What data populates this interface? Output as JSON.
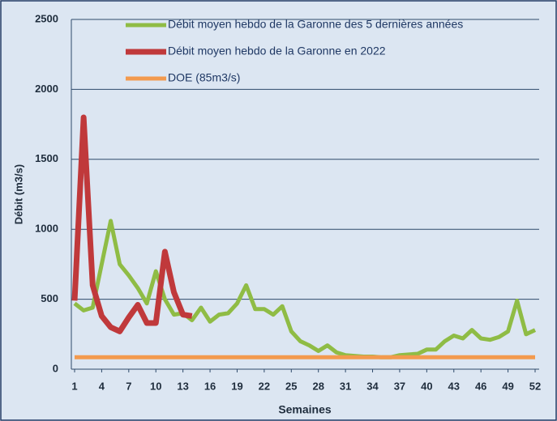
{
  "chart_data": {
    "type": "line",
    "ylabel": "Débit (m3/s)",
    "xlabel": "Semaines",
    "x": [
      1,
      2,
      3,
      4,
      5,
      6,
      7,
      8,
      9,
      10,
      11,
      12,
      13,
      14,
      15,
      16,
      17,
      18,
      19,
      20,
      21,
      22,
      23,
      24,
      25,
      26,
      27,
      28,
      29,
      30,
      31,
      32,
      33,
      34,
      35,
      36,
      37,
      38,
      39,
      40,
      41,
      42,
      43,
      44,
      45,
      46,
      47,
      48,
      49,
      50,
      51,
      52
    ],
    "xlim": [
      1,
      52
    ],
    "xticks": [
      1,
      4,
      7,
      10,
      13,
      16,
      19,
      22,
      25,
      28,
      31,
      34,
      37,
      40,
      43,
      46,
      49,
      52
    ],
    "ylim": [
      0,
      2500
    ],
    "yticks": [
      0,
      500,
      1000,
      1500,
      2000,
      2500
    ],
    "grid": true,
    "series": [
      {
        "name": "Débit moyen hebdo de la Garonne des 5 dernières années",
        "color": "#8fbc45",
        "values": [
          470,
          420,
          440,
          750,
          1060,
          750,
          670,
          580,
          470,
          700,
          500,
          390,
          400,
          350,
          440,
          340,
          390,
          400,
          470,
          600,
          430,
          430,
          390,
          450,
          270,
          200,
          170,
          130,
          170,
          120,
          100,
          95,
          90,
          90,
          85,
          85,
          100,
          105,
          110,
          140,
          140,
          200,
          240,
          220,
          280,
          220,
          210,
          230,
          270,
          490,
          250,
          280
        ]
      },
      {
        "name": "Débit moyen hebdo de la Garonne en 2022",
        "color": "#c0393b",
        "values": [
          490,
          1800,
          600,
          380,
          300,
          270,
          370,
          460,
          330,
          330,
          840,
          550,
          390,
          380,
          null,
          null,
          null,
          null,
          null,
          null,
          null,
          null,
          null,
          null,
          null,
          null,
          null,
          null,
          null,
          null,
          null,
          null,
          null,
          null,
          null,
          null,
          null,
          null,
          null,
          null,
          null,
          null,
          null,
          null,
          null,
          null,
          null,
          null,
          null,
          null,
          null,
          null
        ]
      },
      {
        "name": "DOE (85m3/s)",
        "color": "#f39a4e",
        "values": [
          85,
          85,
          85,
          85,
          85,
          85,
          85,
          85,
          85,
          85,
          85,
          85,
          85,
          85,
          85,
          85,
          85,
          85,
          85,
          85,
          85,
          85,
          85,
          85,
          85,
          85,
          85,
          85,
          85,
          85,
          85,
          85,
          85,
          85,
          85,
          85,
          85,
          85,
          85,
          85,
          85,
          85,
          85,
          85,
          85,
          85,
          85,
          85,
          85,
          85,
          85,
          85
        ]
      }
    ]
  }
}
